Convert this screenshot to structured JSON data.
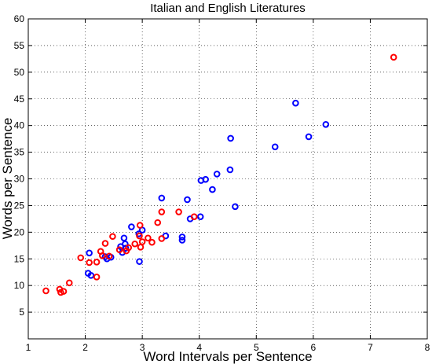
{
  "chart_data": {
    "type": "scatter",
    "title": "Italian and English Literatures",
    "xlabel": "Word Intervals per Sentence",
    "ylabel": "Words per Sentence",
    "xlim": [
      1,
      8
    ],
    "ylim": [
      0,
      60
    ],
    "xticks": [
      1,
      2,
      3,
      4,
      5,
      6,
      7,
      8
    ],
    "yticks": [
      5,
      10,
      15,
      20,
      25,
      30,
      35,
      40,
      45,
      50,
      55,
      60
    ],
    "grid": true,
    "legend": "none",
    "series": [
      {
        "color": "#0000ff",
        "points": [
          [
            5.69,
            44.2
          ],
          [
            6.22,
            40.2
          ],
          [
            5.92,
            37.9
          ],
          [
            4.55,
            37.6
          ],
          [
            5.33,
            36.0
          ],
          [
            4.54,
            31.7
          ],
          [
            4.31,
            30.9
          ],
          [
            4.11,
            29.9
          ],
          [
            4.03,
            29.7
          ],
          [
            4.23,
            28.0
          ],
          [
            3.34,
            26.4
          ],
          [
            3.79,
            26.1
          ],
          [
            4.63,
            24.8
          ],
          [
            4.02,
            22.9
          ],
          [
            3.84,
            22.5
          ],
          [
            3.41,
            19.3
          ],
          [
            3.7,
            19.1
          ],
          [
            3.7,
            18.5
          ],
          [
            3.0,
            20.4
          ],
          [
            2.94,
            19.7
          ],
          [
            2.81,
            21.0
          ],
          [
            2.68,
            18.9
          ],
          [
            2.7,
            17.8
          ],
          [
            2.62,
            17.3
          ],
          [
            2.71,
            17.0
          ],
          [
            2.65,
            16.2
          ],
          [
            2.45,
            15.3
          ],
          [
            2.35,
            15.4
          ],
          [
            2.38,
            15.0
          ],
          [
            2.95,
            14.5
          ],
          [
            2.07,
            16.1
          ],
          [
            2.05,
            12.3
          ],
          [
            2.1,
            11.9
          ]
        ]
      },
      {
        "color": "#ff0000",
        "points": [
          [
            7.41,
            52.8
          ],
          [
            3.34,
            23.8
          ],
          [
            3.64,
            23.8
          ],
          [
            3.91,
            22.9
          ],
          [
            3.27,
            21.8
          ],
          [
            2.96,
            21.3
          ],
          [
            3.34,
            18.8
          ],
          [
            3.1,
            18.9
          ],
          [
            2.95,
            19.3
          ],
          [
            3.0,
            18.2
          ],
          [
            3.17,
            18.1
          ],
          [
            2.87,
            17.8
          ],
          [
            2.97,
            17.2
          ],
          [
            2.72,
            16.5
          ],
          [
            2.76,
            17.1
          ],
          [
            2.6,
            16.7
          ],
          [
            2.48,
            19.2
          ],
          [
            2.35,
            17.9
          ],
          [
            2.27,
            16.4
          ],
          [
            2.3,
            15.6
          ],
          [
            2.42,
            15.5
          ],
          [
            1.92,
            15.2
          ],
          [
            2.07,
            14.3
          ],
          [
            2.2,
            14.4
          ],
          [
            2.2,
            11.6
          ],
          [
            1.72,
            10.5
          ],
          [
            1.31,
            9.0
          ],
          [
            1.55,
            9.3
          ],
          [
            1.57,
            8.7
          ],
          [
            1.62,
            8.9
          ]
        ]
      }
    ]
  }
}
